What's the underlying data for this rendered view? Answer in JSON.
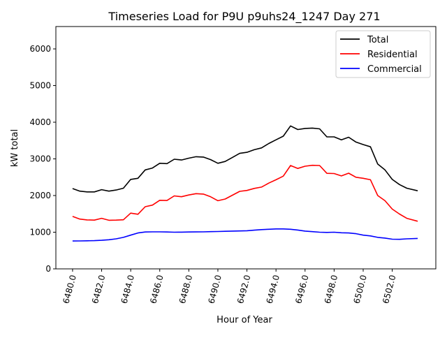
{
  "chart_data": {
    "type": "line",
    "title": "Timeseries Load for P9U p9uhs24_1247  Day 271",
    "xlabel": "Hour of Year",
    "ylabel": "kW total",
    "xlim": [
      6478.85,
      6505.0
    ],
    "ylim": [
      0,
      6610
    ],
    "grid": false,
    "legend_position": "top-right",
    "xticks": [
      6480,
      6482,
      6484,
      6486,
      6488,
      6490,
      6492,
      6494,
      6496,
      6498,
      6500,
      6502
    ],
    "xtick_labels": [
      "6480.0",
      "6482.0",
      "6484.0",
      "6486.0",
      "6488.0",
      "6490.0",
      "6492.0",
      "6494.0",
      "6496.0",
      "6498.0",
      "6500.0",
      "6502.0"
    ],
    "yticks": [
      0,
      1000,
      2000,
      3000,
      4000,
      5000,
      6000
    ],
    "ytick_labels": [
      "0",
      "1000",
      "2000",
      "3000",
      "4000",
      "5000",
      "6000"
    ],
    "x": [
      6480,
      6480.5,
      6481,
      6481.5,
      6482,
      6482.5,
      6483,
      6483.5,
      6484,
      6484.5,
      6485,
      6485.5,
      6486,
      6486.5,
      6487,
      6487.5,
      6488,
      6488.5,
      6489,
      6489.5,
      6490,
      6490.5,
      6491,
      6491.5,
      6492,
      6492.5,
      6493,
      6493.5,
      6494,
      6494.5,
      6495,
      6495.5,
      6496,
      6496.5,
      6497,
      6497.5,
      6498,
      6498.5,
      6499,
      6499.5,
      6500,
      6500.5,
      6501,
      6501.5,
      6502,
      6502.5,
      6503,
      6503.75
    ],
    "series": [
      {
        "name": "Total",
        "color": "#000000",
        "values": [
          2190,
          2120,
          2100,
          2100,
          2160,
          2120,
          2150,
          2200,
          2440,
          2470,
          2700,
          2750,
          2880,
          2870,
          2990,
          2970,
          3020,
          3060,
          3050,
          2980,
          2880,
          2930,
          3040,
          3150,
          3180,
          3250,
          3300,
          3420,
          3520,
          3620,
          3900,
          3800,
          3830,
          3840,
          3820,
          3600,
          3600,
          3520,
          3590,
          3460,
          3390,
          3330,
          2860,
          2700,
          2440,
          2300,
          2200,
          2130
        ]
      },
      {
        "name": "Residential",
        "color": "#ff0000",
        "values": [
          1430,
          1358,
          1335,
          1330,
          1380,
          1325,
          1330,
          1340,
          1520,
          1490,
          1695,
          1740,
          1870,
          1865,
          1990,
          1968,
          2015,
          2052,
          2040,
          1965,
          1860,
          1905,
          2010,
          2115,
          2140,
          2195,
          2230,
          2340,
          2430,
          2530,
          2820,
          2740,
          2800,
          2825,
          2820,
          2605,
          2600,
          2535,
          2610,
          2500,
          2470,
          2430,
          2000,
          1860,
          1630,
          1495,
          1380,
          1300
        ]
      },
      {
        "name": "Commercial",
        "color": "#0000ff",
        "values": [
          760,
          762,
          765,
          770,
          780,
          795,
          820,
          860,
          920,
          980,
          1005,
          1010,
          1010,
          1005,
          1000,
          1002,
          1005,
          1008,
          1010,
          1015,
          1020,
          1025,
          1030,
          1035,
          1040,
          1055,
          1070,
          1080,
          1090,
          1090,
          1080,
          1060,
          1030,
          1015,
          1000,
          995,
          1000,
          985,
          980,
          960,
          920,
          900,
          860,
          840,
          810,
          805,
          820,
          830
        ]
      }
    ]
  }
}
